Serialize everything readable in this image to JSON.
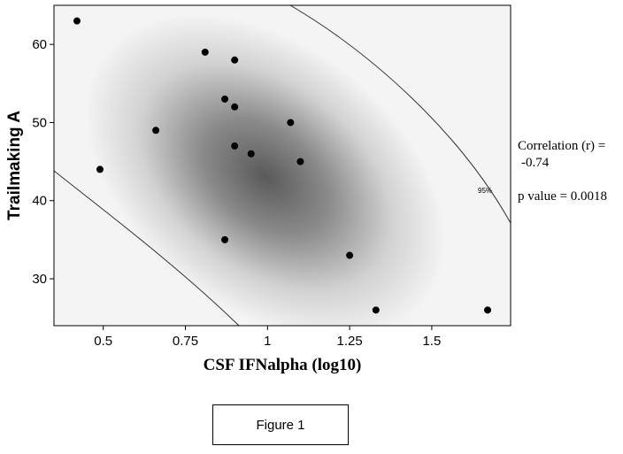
{
  "chart_data": {
    "type": "scatter",
    "title": "",
    "xlabel": "CSF IFNalpha (log10)",
    "ylabel": "Trailmaking A",
    "xlim": [
      0.35,
      1.74
    ],
    "ylim": [
      24,
      65
    ],
    "x_ticks": [
      0.5,
      0.75,
      1,
      1.25,
      1.5
    ],
    "x_tick_labels": [
      "0.5",
      "0.75",
      "1",
      "1.25",
      "1.5"
    ],
    "y_ticks": [
      30,
      40,
      50,
      60
    ],
    "y_tick_labels": [
      "30",
      "40",
      "50",
      "60"
    ],
    "grid": false,
    "confidence_ellipse_label": "95%",
    "points": [
      {
        "x": 0.42,
        "y": 63
      },
      {
        "x": 0.49,
        "y": 44
      },
      {
        "x": 0.66,
        "y": 49
      },
      {
        "x": 0.81,
        "y": 59
      },
      {
        "x": 0.87,
        "y": 53
      },
      {
        "x": 0.87,
        "y": 35
      },
      {
        "x": 0.9,
        "y": 58
      },
      {
        "x": 0.9,
        "y": 52
      },
      {
        "x": 0.9,
        "y": 47
      },
      {
        "x": 0.95,
        "y": 46
      },
      {
        "x": 1.07,
        "y": 50
      },
      {
        "x": 1.1,
        "y": 45
      },
      {
        "x": 1.25,
        "y": 33
      },
      {
        "x": 1.33,
        "y": 26
      },
      {
        "x": 1.67,
        "y": 26
      }
    ],
    "annotations": {
      "correlation_line1": "Correlation (r) =",
      "correlation_line2": "-0.74",
      "p_value": "p value = 0.0018"
    }
  },
  "caption": "Figure 1"
}
